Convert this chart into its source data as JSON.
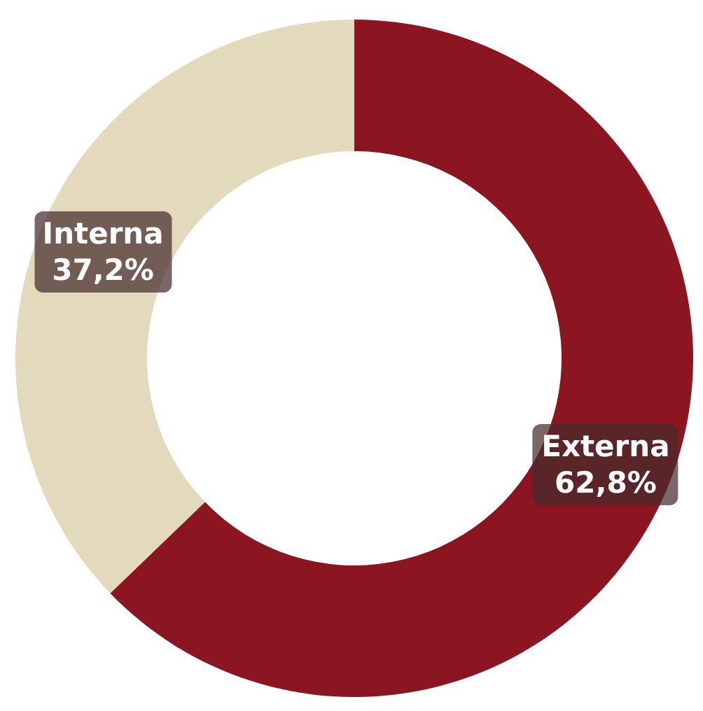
{
  "chart_data": {
    "type": "donut",
    "categories": [
      "Externa",
      "Interna"
    ],
    "values": [
      62.8,
      37.2
    ],
    "value_labels": [
      "62,8%",
      "37,2%"
    ],
    "colors": [
      "#8b1520",
      "#e3d9bd"
    ],
    "legend": false
  }
}
